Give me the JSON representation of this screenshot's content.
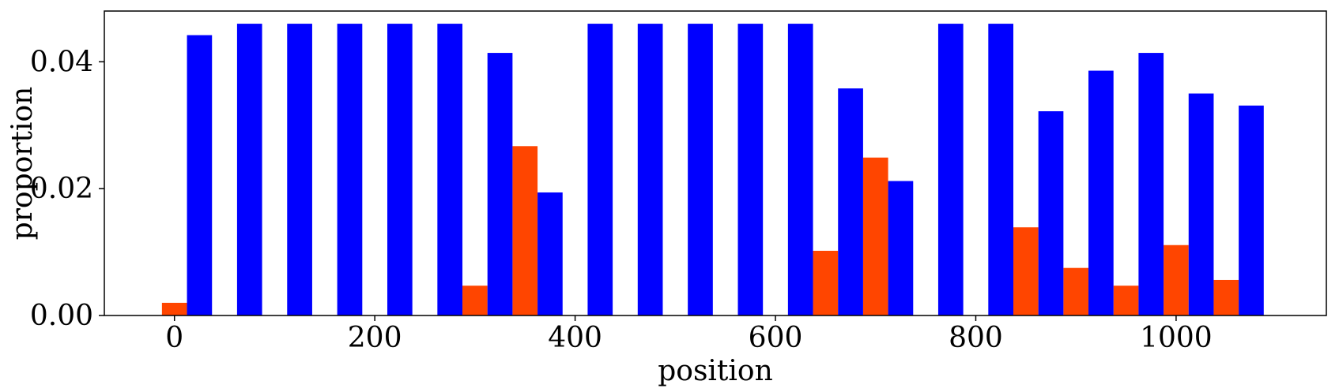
{
  "chart_data": {
    "type": "bar",
    "xlabel": "position",
    "ylabel": "proportion",
    "xlim": [
      -70,
      1150
    ],
    "ylim": [
      0.0,
      0.048
    ],
    "bar_width": 25,
    "x_ticks": [
      0,
      200,
      400,
      600,
      800,
      1000
    ],
    "x_tick_labels": [
      "0",
      "200",
      "400",
      "600",
      "800",
      "1000"
    ],
    "y_ticks": [
      0.0,
      0.02,
      0.04
    ],
    "y_tick_labels": [
      "0.00",
      "0.02",
      "0.04"
    ],
    "grid": false,
    "legend": "none",
    "series": [
      {
        "color": "#ff4500",
        "x": [
          0,
          300,
          350,
          650,
          700,
          850,
          900,
          950,
          1000,
          1050
        ],
        "values": [
          0.002,
          0.0047,
          0.0267,
          0.0102,
          0.0249,
          0.0139,
          0.0075,
          0.0047,
          0.0111,
          0.0056
        ]
      },
      {
        "color": "#0000ff",
        "x": [
          25,
          75,
          125,
          175,
          225,
          275,
          325,
          375,
          425,
          475,
          525,
          575,
          625,
          675,
          725,
          775,
          825,
          875,
          925,
          975,
          1025,
          1075
        ],
        "values": [
          0.0442,
          0.046,
          0.046,
          0.046,
          0.046,
          0.046,
          0.0414,
          0.0194,
          0.046,
          0.046,
          0.046,
          0.046,
          0.046,
          0.0358,
          0.0212,
          0.046,
          0.046,
          0.0322,
          0.0386,
          0.0414,
          0.035,
          0.0331
        ]
      }
    ]
  }
}
